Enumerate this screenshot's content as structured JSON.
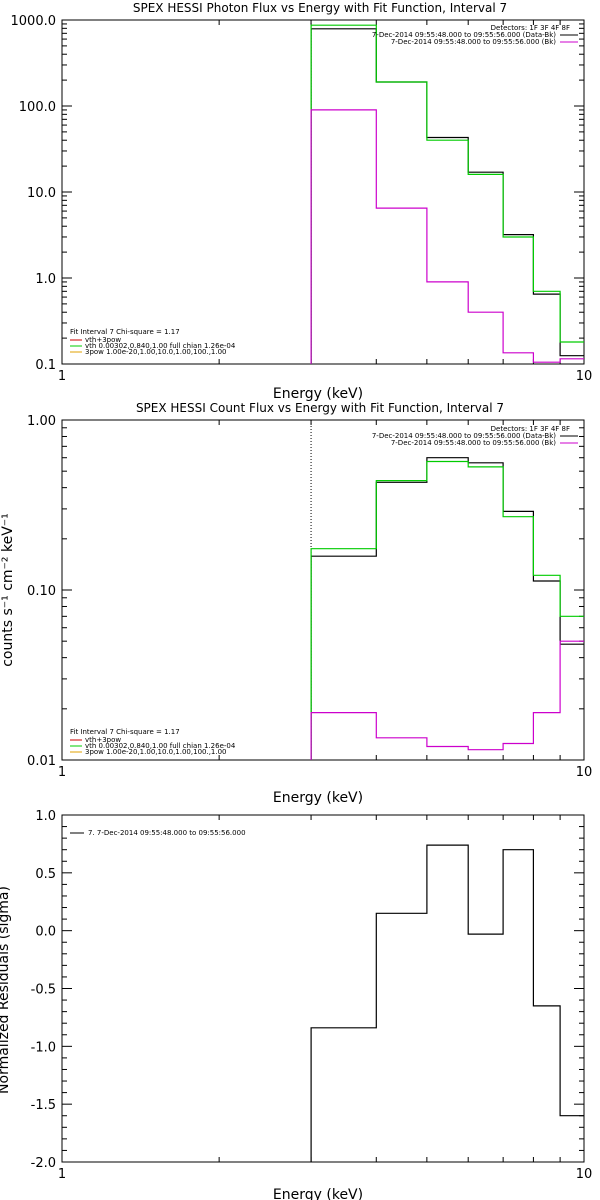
{
  "chart_data": [
    {
      "type": "line",
      "title": "SPEX HESSI Photon Flux vs Energy with Fit Function, Interval 7",
      "xlabel": "Energy (keV)",
      "ylabel": "",
      "xscale": "log",
      "yscale": "log",
      "xlim": [
        1,
        10
      ],
      "ylim": [
        0.1,
        1000
      ],
      "xtick_labels": [
        {
          "value": 1,
          "label": "1"
        },
        {
          "value": 10,
          "label": "10"
        }
      ],
      "ytick_labels": [
        {
          "value": 1000,
          "label": "1000.0"
        },
        {
          "value": 100,
          "label": "100.0"
        },
        {
          "value": 10,
          "label": "10.0"
        },
        {
          "value": 1,
          "label": "1.0"
        },
        {
          "value": 0.1,
          "label": "0.1"
        }
      ],
      "bin_edges": [
        3,
        4,
        5,
        6,
        7,
        8,
        9,
        10
      ],
      "series": [
        {
          "color": "#000000",
          "values": [
            790,
            190,
            43,
            17,
            3.2,
            0.65,
            0.125
          ],
          "start_level": 0.1
        },
        {
          "color": "#00cc00",
          "values": [
            870,
            190,
            40,
            16,
            3.0,
            0.7,
            0.18
          ],
          "start_level": 0.1
        },
        {
          "color": "#cc00cc",
          "values": [
            90,
            6.5,
            0.9,
            0.4,
            0.135,
            0.105,
            0.115
          ],
          "start_level": 0.1
        }
      ],
      "vertical_line": {
        "x": 3,
        "style": "dotted"
      },
      "legend_top_right": {
        "placement": "top-right",
        "header": "Detectors: 1F 3F 4F 8F",
        "entries": [
          {
            "text": "7-Dec-2014 09:55:48.000 to 09:55:56.000 (Data-Bk)",
            "color": "#000000"
          },
          {
            "text": "7-Dec-2014 09:55:48.000 to 09:55:56.000 (Bk)",
            "color": "#cc00cc"
          }
        ]
      },
      "legend_bottom_left": {
        "placement": "bottom-left",
        "header": "Fit Interval 7   Chi-square = 1.17",
        "entries": [
          {
            "text": "vth+3pow",
            "color": "#cc0000"
          },
          {
            "text": "vth 0.00302,0.840,1.00  full chian 1.26e-04",
            "color": "#00cc00"
          },
          {
            "text": "3pow 1.00e-20,1.00,10.0,1.00,100.,1.00",
            "color": "#e0a000"
          }
        ]
      }
    },
    {
      "type": "line",
      "title": "SPEX HESSI Count Flux vs Energy with Fit Function, Interval 7",
      "xlabel": "Energy (keV)",
      "ylabel": "counts s⁻¹ cm⁻² keV⁻¹",
      "xscale": "log",
      "yscale": "log",
      "xlim": [
        1,
        10
      ],
      "ylim": [
        0.01,
        1
      ],
      "xtick_labels": [
        {
          "value": 1,
          "label": "1"
        },
        {
          "value": 10,
          "label": "10"
        }
      ],
      "ytick_labels": [
        {
          "value": 1,
          "label": "1.00"
        },
        {
          "value": 0.1,
          "label": "0.10"
        },
        {
          "value": 0.01,
          "label": "0.01"
        }
      ],
      "bin_edges": [
        3,
        4,
        5,
        6,
        7,
        8,
        9,
        10
      ],
      "series": [
        {
          "color": "#000000",
          "values": [
            0.158,
            0.43,
            0.6,
            0.56,
            0.29,
            0.113,
            0.048
          ],
          "start_level": 0.01
        },
        {
          "color": "#00cc00",
          "values": [
            0.175,
            0.44,
            0.57,
            0.53,
            0.27,
            0.122,
            0.07
          ],
          "start_level": 0.01
        },
        {
          "color": "#cc00cc",
          "values": [
            0.019,
            0.0135,
            0.012,
            0.0115,
            0.0125,
            0.019,
            0.05
          ],
          "start_level": 0.01
        }
      ],
      "vertical_line": {
        "x": 3,
        "style": "dotted"
      },
      "legend_top_right": {
        "placement": "top-right",
        "header": "Detectors: 1F 3F 4F 8F",
        "entries": [
          {
            "text": "7-Dec-2014 09:55:48.000 to 09:55:56.000 (Data-Bk)",
            "color": "#000000"
          },
          {
            "text": "7-Dec-2014 09:55:48.000 to 09:55:56.000 (Bk)",
            "color": "#cc00cc"
          }
        ]
      },
      "legend_bottom_left": {
        "placement": "bottom-left",
        "header": "Fit Interval 7   Chi-square = 1.17",
        "entries": [
          {
            "text": "vth+3pow",
            "color": "#cc0000"
          },
          {
            "text": "vth 0.00302,0.840,1.00  full chian 1.26e-04",
            "color": "#00cc00"
          },
          {
            "text": "3pow 1.00e-20,1.00,10.0,1.00,100.,1.00",
            "color": "#e0a000"
          }
        ]
      }
    },
    {
      "type": "line",
      "title": "",
      "xlabel": "Energy (keV)",
      "ylabel": "Normalized Residuals (sigma)",
      "xscale": "log",
      "yscale": "linear",
      "xlim": [
        1,
        10
      ],
      "ylim": [
        -2,
        1
      ],
      "xtick_labels": [
        {
          "value": 1,
          "label": "1"
        },
        {
          "value": 10,
          "label": "10"
        }
      ],
      "ytick_labels": [
        {
          "value": 1,
          "label": "1.0"
        },
        {
          "value": 0.5,
          "label": "0.5"
        },
        {
          "value": 0,
          "label": "0.0"
        },
        {
          "value": -0.5,
          "label": "-0.5"
        },
        {
          "value": -1,
          "label": "-1.0"
        },
        {
          "value": -1.5,
          "label": "-1.5"
        },
        {
          "value": -2,
          "label": "-2.0"
        }
      ],
      "bin_edges": [
        3,
        4,
        5,
        6,
        7,
        8,
        9,
        10
      ],
      "series": [
        {
          "color": "#000000",
          "values": [
            -0.84,
            0.15,
            0.74,
            -0.03,
            0.7,
            -0.65,
            -1.6
          ],
          "start_level": -2
        }
      ],
      "legend_top_left": {
        "placement": "top-left",
        "entries": [
          {
            "text": "7.  7-Dec-2014 09:55:48.000 to 09:55:56.000",
            "color": "#000000"
          }
        ]
      }
    }
  ]
}
